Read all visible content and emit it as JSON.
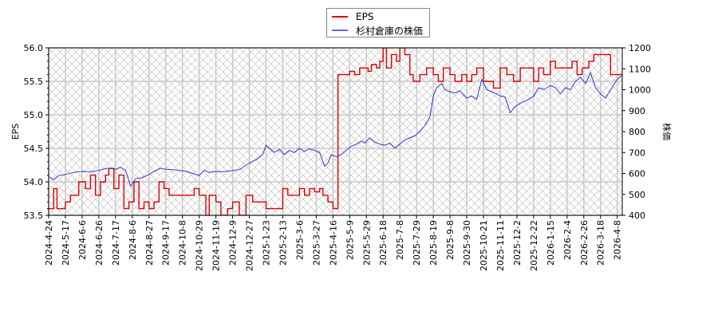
{
  "chart_data": {
    "type": "line",
    "title": "",
    "legend": {
      "position": "top-center",
      "entries": [
        {
          "label": "EPS",
          "color": "#dd0000"
        },
        {
          "label": "杉村倉庫の株価",
          "color": "#3333cc"
        }
      ]
    },
    "left_axis": {
      "label": "EPS",
      "ylim": [
        53.5,
        56.0
      ],
      "ticks": [
        "53.5",
        "54.0",
        "54.5",
        "55.0",
        "55.5",
        "56.0"
      ]
    },
    "right_axis": {
      "label": "株価",
      "ylim": [
        400,
        1200
      ],
      "ticks": [
        "400",
        "500",
        "600",
        "700",
        "800",
        "900",
        "1000",
        "1100",
        "1200"
      ]
    },
    "x_tick_labels": [
      "2024-4-24",
      "2024-5-17",
      "2024-6-6",
      "2024-6-26",
      "2024-7-17",
      "2024-8-6",
      "2024-8-27",
      "2024-9-17",
      "2024-10-8",
      "2024-10-29",
      "2024-11-19",
      "2024-12-9",
      "2024-12-27",
      "2025-1-23",
      "2025-2-13",
      "2025-3-6",
      "2025-3-27",
      "2025-4-16",
      "2025-5-9",
      "2025-5-29",
      "2025-6-18",
      "2025-7-8",
      "2025-7-29",
      "2025-8-19",
      "2025-9-8",
      "2025-9-30",
      "2025-10-21",
      "2025-11-11",
      "2025-12-2",
      "2025-12-22",
      "2026-1-15",
      "2026-2-4",
      "2026-2-26",
      "2026-3-18",
      "2026-4-8"
    ],
    "grid": true,
    "series": [
      {
        "name": "EPS",
        "axis": "left",
        "color": "#dd0000",
        "points": [
          [
            0,
            53.6
          ],
          [
            0.3,
            53.9
          ],
          [
            0.5,
            53.6
          ],
          [
            1,
            53.7
          ],
          [
            1.3,
            53.8
          ],
          [
            1.6,
            53.8
          ],
          [
            1.8,
            54.0
          ],
          [
            2.2,
            53.9
          ],
          [
            2.5,
            54.1
          ],
          [
            2.8,
            53.8
          ],
          [
            3.1,
            54.0
          ],
          [
            3.4,
            54.1
          ],
          [
            3.6,
            54.2
          ],
          [
            3.9,
            53.9
          ],
          [
            4.2,
            54.1
          ],
          [
            4.5,
            53.6
          ],
          [
            4.8,
            53.7
          ],
          [
            5.1,
            54.0
          ],
          [
            5.4,
            53.6
          ],
          [
            5.7,
            53.7
          ],
          [
            6.0,
            53.6
          ],
          [
            6.3,
            53.7
          ],
          [
            6.6,
            54.0
          ],
          [
            6.9,
            53.9
          ],
          [
            7.2,
            53.8
          ],
          [
            7.6,
            53.8
          ],
          [
            8.0,
            53.8
          ],
          [
            8.5,
            53.8
          ],
          [
            8.7,
            53.9
          ],
          [
            9.0,
            53.8
          ],
          [
            9.4,
            53.5
          ],
          [
            9.6,
            53.8
          ],
          [
            10.0,
            53.7
          ],
          [
            10.3,
            53.5
          ],
          [
            10.7,
            53.6
          ],
          [
            11.0,
            53.7
          ],
          [
            11.4,
            53.5
          ],
          [
            11.8,
            53.8
          ],
          [
            12.2,
            53.7
          ],
          [
            12.6,
            53.7
          ],
          [
            13.0,
            53.6
          ],
          [
            13.5,
            53.6
          ],
          [
            14.0,
            53.9
          ],
          [
            14.3,
            53.8
          ],
          [
            14.7,
            53.8
          ],
          [
            15.0,
            53.9
          ],
          [
            15.3,
            53.8
          ],
          [
            15.6,
            53.9
          ],
          [
            15.9,
            53.85
          ],
          [
            16.2,
            53.9
          ],
          [
            16.4,
            53.8
          ],
          [
            16.7,
            53.7
          ],
          [
            17.0,
            53.6
          ],
          [
            17.3,
            55.6
          ],
          [
            17.7,
            55.6
          ],
          [
            18.0,
            55.65
          ],
          [
            18.3,
            55.6
          ],
          [
            18.6,
            55.7
          ],
          [
            18.9,
            55.7
          ],
          [
            19.1,
            55.65
          ],
          [
            19.3,
            55.75
          ],
          [
            19.6,
            55.7
          ],
          [
            19.8,
            55.8
          ],
          [
            20.0,
            56.0
          ],
          [
            20.2,
            55.7
          ],
          [
            20.5,
            55.9
          ],
          [
            20.8,
            55.8
          ],
          [
            21.0,
            56.0
          ],
          [
            21.3,
            55.9
          ],
          [
            21.6,
            55.6
          ],
          [
            21.8,
            55.5
          ],
          [
            22.2,
            55.6
          ],
          [
            22.6,
            55.7
          ],
          [
            23.0,
            55.6
          ],
          [
            23.3,
            55.5
          ],
          [
            23.6,
            55.7
          ],
          [
            24.0,
            55.6
          ],
          [
            24.3,
            55.5
          ],
          [
            24.7,
            55.6
          ],
          [
            25.0,
            55.5
          ],
          [
            25.3,
            55.6
          ],
          [
            25.6,
            55.7
          ],
          [
            26.0,
            55.5
          ],
          [
            26.4,
            55.5
          ],
          [
            26.6,
            55.4
          ],
          [
            27.0,
            55.7
          ],
          [
            27.4,
            55.6
          ],
          [
            27.8,
            55.5
          ],
          [
            28.2,
            55.7
          ],
          [
            28.6,
            55.7
          ],
          [
            29.0,
            55.5
          ],
          [
            29.3,
            55.7
          ],
          [
            29.6,
            55.6
          ],
          [
            30.0,
            55.8
          ],
          [
            30.3,
            55.7
          ],
          [
            30.6,
            55.7
          ],
          [
            31.0,
            55.7
          ],
          [
            31.3,
            55.8
          ],
          [
            31.6,
            55.6
          ],
          [
            31.9,
            55.7
          ],
          [
            32.3,
            55.8
          ],
          [
            32.6,
            55.9
          ],
          [
            33.0,
            55.9
          ],
          [
            33.3,
            55.9
          ],
          [
            33.6,
            55.6
          ],
          [
            34.0,
            55.6
          ],
          [
            34.5,
            55.5
          ]
        ]
      },
      {
        "name": "杉村倉庫の株価",
        "axis": "right",
        "color": "#3333cc",
        "points": [
          [
            0,
            585
          ],
          [
            0.3,
            570
          ],
          [
            0.6,
            590
          ],
          [
            1.0,
            595
          ],
          [
            1.5,
            605
          ],
          [
            2.0,
            610
          ],
          [
            2.5,
            608
          ],
          [
            3.0,
            615
          ],
          [
            3.5,
            625
          ],
          [
            4.0,
            620
          ],
          [
            4.3,
            630
          ],
          [
            4.6,
            615
          ],
          [
            4.9,
            540
          ],
          [
            5.2,
            575
          ],
          [
            5.6,
            580
          ],
          [
            6.0,
            595
          ],
          [
            6.3,
            610
          ],
          [
            6.7,
            625
          ],
          [
            7.0,
            620
          ],
          [
            7.4,
            618
          ],
          [
            7.8,
            615
          ],
          [
            8.2,
            610
          ],
          [
            8.6,
            600
          ],
          [
            9.0,
            590
          ],
          [
            9.3,
            615
          ],
          [
            9.6,
            605
          ],
          [
            10.0,
            610
          ],
          [
            10.4,
            608
          ],
          [
            10.8,
            612
          ],
          [
            11.2,
            615
          ],
          [
            11.5,
            622
          ],
          [
            11.8,
            640
          ],
          [
            12.1,
            655
          ],
          [
            12.4,
            665
          ],
          [
            12.8,
            690
          ],
          [
            13.0,
            735
          ],
          [
            13.2,
            720
          ],
          [
            13.5,
            700
          ],
          [
            13.8,
            715
          ],
          [
            14.1,
            690
          ],
          [
            14.4,
            710
          ],
          [
            14.7,
            700
          ],
          [
            15.0,
            720
          ],
          [
            15.3,
            705
          ],
          [
            15.6,
            718
          ],
          [
            15.9,
            710
          ],
          [
            16.2,
            700
          ],
          [
            16.5,
            635
          ],
          [
            16.7,
            650
          ],
          [
            16.9,
            690
          ],
          [
            17.2,
            680
          ],
          [
            17.5,
            690
          ],
          [
            17.8,
            710
          ],
          [
            18.1,
            730
          ],
          [
            18.4,
            740
          ],
          [
            18.7,
            755
          ],
          [
            18.9,
            745
          ],
          [
            19.2,
            770
          ],
          [
            19.5,
            750
          ],
          [
            19.8,
            740
          ],
          [
            20.1,
            735
          ],
          [
            20.4,
            745
          ],
          [
            20.7,
            720
          ],
          [
            21.0,
            740
          ],
          [
            21.3,
            760
          ],
          [
            21.6,
            770
          ],
          [
            21.9,
            780
          ],
          [
            22.2,
            800
          ],
          [
            22.5,
            830
          ],
          [
            22.8,
            870
          ],
          [
            23.0,
            970
          ],
          [
            23.2,
            1010
          ],
          [
            23.5,
            1030
          ],
          [
            23.7,
            1000
          ],
          [
            24.0,
            990
          ],
          [
            24.3,
            985
          ],
          [
            24.6,
            995
          ],
          [
            25.0,
            960
          ],
          [
            25.3,
            970
          ],
          [
            25.6,
            955
          ],
          [
            25.9,
            1050
          ],
          [
            26.2,
            1000
          ],
          [
            26.5,
            990
          ],
          [
            26.8,
            980
          ],
          [
            27.0,
            970
          ],
          [
            27.3,
            965
          ],
          [
            27.6,
            890
          ],
          [
            27.9,
            920
          ],
          [
            28.2,
            935
          ],
          [
            28.6,
            950
          ],
          [
            29.0,
            970
          ],
          [
            29.3,
            1010
          ],
          [
            29.6,
            1000
          ],
          [
            30.0,
            1020
          ],
          [
            30.3,
            1010
          ],
          [
            30.6,
            980
          ],
          [
            30.9,
            1010
          ],
          [
            31.2,
            1000
          ],
          [
            31.5,
            1040
          ],
          [
            31.8,
            1060
          ],
          [
            32.1,
            1030
          ],
          [
            32.4,
            1080
          ],
          [
            32.7,
            1010
          ],
          [
            33.0,
            980
          ],
          [
            33.3,
            960
          ],
          [
            33.6,
            1000
          ],
          [
            34.0,
            1050
          ],
          [
            34.5,
            1080
          ],
          [
            34.9,
            1060
          ]
        ]
      }
    ]
  }
}
